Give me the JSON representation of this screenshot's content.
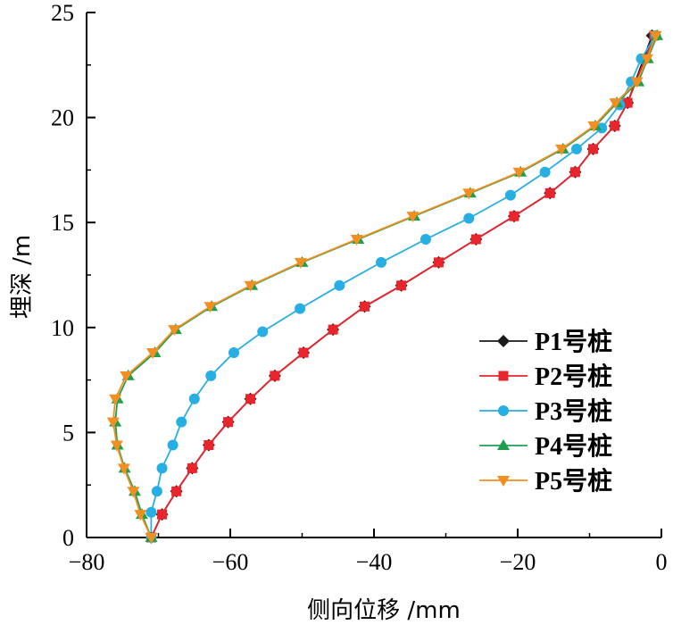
{
  "chart_data": {
    "type": "line",
    "title": "",
    "xlabel": "侧向位移 /mm",
    "ylabel": "埋深 /m",
    "xlim": [
      -80,
      0
    ],
    "ylim": [
      0,
      25
    ],
    "x_ticks": [
      "−80",
      "−60",
      "−40",
      "−20",
      "0"
    ],
    "y_ticks": [
      "0",
      "5",
      "10",
      "15",
      "20",
      "25"
    ],
    "grid": false,
    "legend_position": "right",
    "series": [
      {
        "name": "P1号桩",
        "color": "#1a1a1a",
        "marker": "diamond",
        "points": [
          [
            -71.0,
            0.0
          ],
          [
            -69.5,
            1.1
          ],
          [
            -67.5,
            2.2
          ],
          [
            -65.3,
            3.3
          ],
          [
            -63.0,
            4.4
          ],
          [
            -60.3,
            5.5
          ],
          [
            -57.2,
            6.6
          ],
          [
            -53.8,
            7.7
          ],
          [
            -49.8,
            8.8
          ],
          [
            -45.7,
            9.9
          ],
          [
            -41.3,
            11.0
          ],
          [
            -36.2,
            12.0
          ],
          [
            -31.0,
            13.1
          ],
          [
            -25.8,
            14.2
          ],
          [
            -20.5,
            15.3
          ],
          [
            -15.5,
            16.4
          ],
          [
            -12.0,
            17.4
          ],
          [
            -9.5,
            18.5
          ],
          [
            -6.5,
            19.6
          ],
          [
            -4.7,
            20.7
          ],
          [
            -1.3,
            23.9
          ]
        ]
      },
      {
        "name": "P2号桩",
        "color": "#e8242c",
        "marker": "square",
        "points": [
          [
            -71.0,
            0.0
          ],
          [
            -69.5,
            1.1
          ],
          [
            -67.5,
            2.2
          ],
          [
            -65.3,
            3.3
          ],
          [
            -63.0,
            4.4
          ],
          [
            -60.3,
            5.5
          ],
          [
            -57.2,
            6.6
          ],
          [
            -53.8,
            7.7
          ],
          [
            -49.8,
            8.8
          ],
          [
            -45.7,
            9.9
          ],
          [
            -41.3,
            11.0
          ],
          [
            -36.2,
            12.0
          ],
          [
            -31.0,
            13.1
          ],
          [
            -25.8,
            14.2
          ],
          [
            -20.5,
            15.3
          ],
          [
            -15.5,
            16.4
          ],
          [
            -12.0,
            17.4
          ],
          [
            -9.5,
            18.5
          ],
          [
            -6.5,
            19.6
          ],
          [
            -4.7,
            20.7
          ],
          [
            -1.0,
            23.9
          ]
        ]
      },
      {
        "name": "P3号桩",
        "color": "#27aee3",
        "marker": "circle",
        "points": [
          [
            -71.0,
            0.0
          ],
          [
            -71.0,
            1.2
          ],
          [
            -70.2,
            2.2
          ],
          [
            -69.5,
            3.3
          ],
          [
            -68.0,
            4.4
          ],
          [
            -66.8,
            5.5
          ],
          [
            -65.0,
            6.6
          ],
          [
            -62.7,
            7.7
          ],
          [
            -59.5,
            8.8
          ],
          [
            -55.5,
            9.8
          ],
          [
            -50.3,
            10.9
          ],
          [
            -44.8,
            12.0
          ],
          [
            -39.0,
            13.1
          ],
          [
            -32.8,
            14.2
          ],
          [
            -26.8,
            15.2
          ],
          [
            -21.0,
            16.3
          ],
          [
            -16.2,
            17.4
          ],
          [
            -11.8,
            18.5
          ],
          [
            -8.3,
            19.5
          ],
          [
            -5.8,
            20.6
          ],
          [
            -4.2,
            21.7
          ],
          [
            -2.8,
            22.8
          ],
          [
            -0.8,
            23.9
          ]
        ]
      },
      {
        "name": "P4号桩",
        "color": "#1fa04d",
        "marker": "triangle-up",
        "points": [
          [
            -71.0,
            0.0
          ],
          [
            -72.3,
            1.1
          ],
          [
            -73.3,
            2.2
          ],
          [
            -74.7,
            3.3
          ],
          [
            -75.7,
            4.4
          ],
          [
            -76.0,
            5.5
          ],
          [
            -75.7,
            6.6
          ],
          [
            -74.2,
            7.7
          ],
          [
            -70.5,
            8.8
          ],
          [
            -67.6,
            9.9
          ],
          [
            -62.6,
            11.0
          ],
          [
            -57.0,
            12.0
          ],
          [
            -50.0,
            13.1
          ],
          [
            -42.2,
            14.2
          ],
          [
            -34.4,
            15.3
          ],
          [
            -26.6,
            16.4
          ],
          [
            -19.6,
            17.4
          ],
          [
            -13.7,
            18.5
          ],
          [
            -9.2,
            19.6
          ],
          [
            -6.2,
            20.7
          ],
          [
            -3.2,
            21.7
          ],
          [
            -1.9,
            22.8
          ],
          [
            -0.6,
            23.9
          ]
        ]
      },
      {
        "name": "P5号桩",
        "color": "#f28f22",
        "marker": "triangle-down",
        "points": [
          [
            -71.0,
            0.0
          ],
          [
            -72.5,
            1.1
          ],
          [
            -73.5,
            2.2
          ],
          [
            -74.8,
            3.3
          ],
          [
            -75.8,
            4.4
          ],
          [
            -76.3,
            5.5
          ],
          [
            -76.0,
            6.6
          ],
          [
            -74.5,
            7.7
          ],
          [
            -70.8,
            8.8
          ],
          [
            -67.8,
            9.9
          ],
          [
            -62.8,
            11.0
          ],
          [
            -57.2,
            12.0
          ],
          [
            -50.2,
            13.1
          ],
          [
            -42.4,
            14.2
          ],
          [
            -34.6,
            15.3
          ],
          [
            -26.8,
            16.4
          ],
          [
            -19.8,
            17.4
          ],
          [
            -13.9,
            18.5
          ],
          [
            -9.4,
            19.6
          ],
          [
            -6.4,
            20.7
          ],
          [
            -3.4,
            21.7
          ],
          [
            -2.0,
            22.8
          ],
          [
            -0.8,
            23.9
          ]
        ]
      }
    ]
  }
}
